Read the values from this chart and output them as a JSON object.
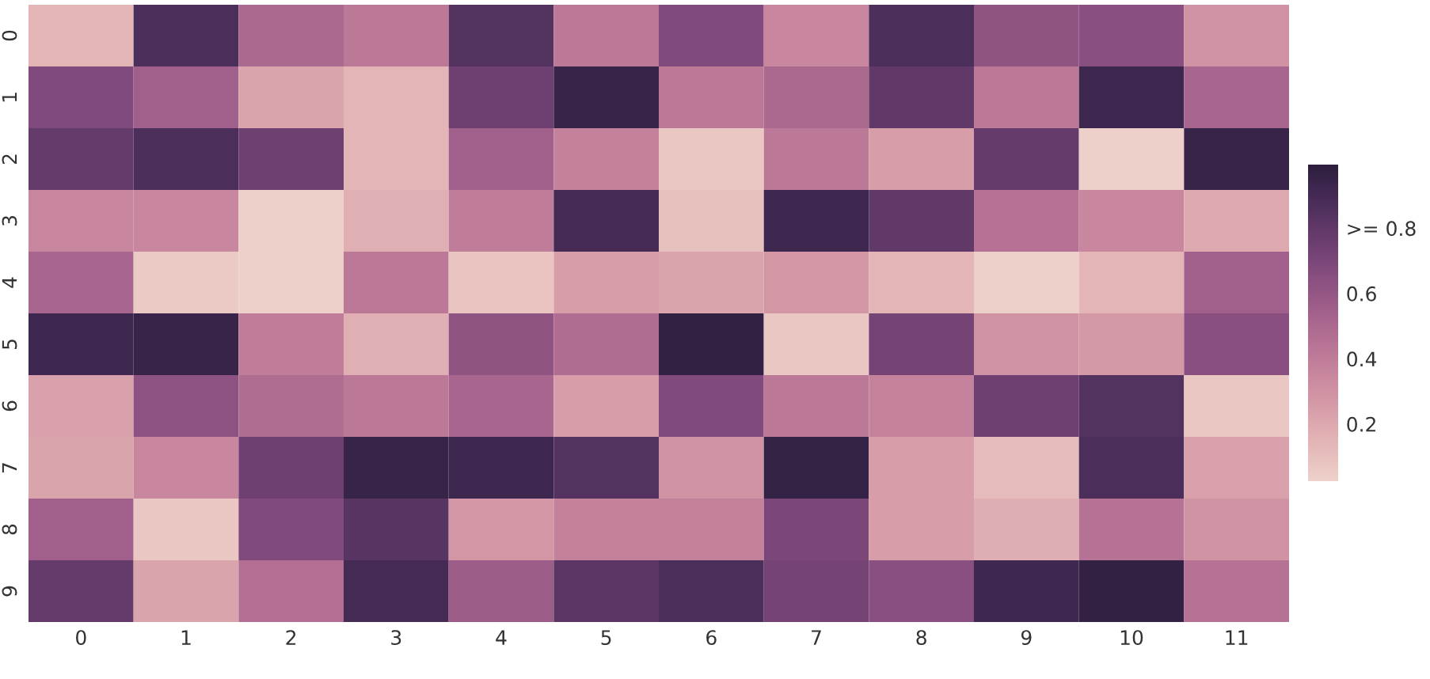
{
  "chart_data": {
    "type": "heatmap",
    "categories": [
      "0",
      "1",
      "2",
      "3",
      "4",
      "5",
      "6",
      "7",
      "8",
      "9",
      "10",
      "11"
    ],
    "y_categories": [
      "0",
      "1",
      "2",
      "3",
      "4",
      "5",
      "6",
      "7",
      "8",
      "9"
    ],
    "cells": [
      [
        0.15,
        0.88,
        0.5,
        0.42,
        0.85,
        0.42,
        0.68,
        0.35,
        0.88,
        0.62,
        0.65,
        0.3
      ],
      [
        0.68,
        0.55,
        0.22,
        0.15,
        0.75,
        0.95,
        0.42,
        0.5,
        0.8,
        0.42,
        0.93,
        0.52
      ],
      [
        0.78,
        0.88,
        0.75,
        0.15,
        0.55,
        0.38,
        0.07,
        0.42,
        0.25,
        0.78,
        0.03,
        0.95
      ],
      [
        0.35,
        0.35,
        0.03,
        0.17,
        0.4,
        0.9,
        0.1,
        0.93,
        0.8,
        0.45,
        0.35,
        0.2
      ],
      [
        0.52,
        0.06,
        0.03,
        0.42,
        0.08,
        0.25,
        0.22,
        0.28,
        0.15,
        0.04,
        0.15,
        0.55
      ],
      [
        0.93,
        0.95,
        0.4,
        0.17,
        0.62,
        0.48,
        0.97,
        0.07,
        0.72,
        0.3,
        0.27,
        0.65
      ],
      [
        0.23,
        0.63,
        0.48,
        0.42,
        0.52,
        0.25,
        0.68,
        0.42,
        0.37,
        0.75,
        0.85,
        0.07
      ],
      [
        0.22,
        0.35,
        0.75,
        0.95,
        0.93,
        0.85,
        0.3,
        0.96,
        0.25,
        0.12,
        0.88,
        0.23
      ],
      [
        0.55,
        0.07,
        0.68,
        0.83,
        0.28,
        0.38,
        0.38,
        0.7,
        0.25,
        0.18,
        0.45,
        0.3
      ],
      [
        0.78,
        0.22,
        0.47,
        0.9,
        0.57,
        0.82,
        0.88,
        0.72,
        0.65,
        0.92,
        0.97,
        0.45
      ]
    ],
    "clim": [
      0.025,
      0.995
    ],
    "cticks": [
      0.2,
      0.4,
      0.6,
      {
        "value": 0.8,
        "label": ">= 0.8"
      }
    ]
  }
}
